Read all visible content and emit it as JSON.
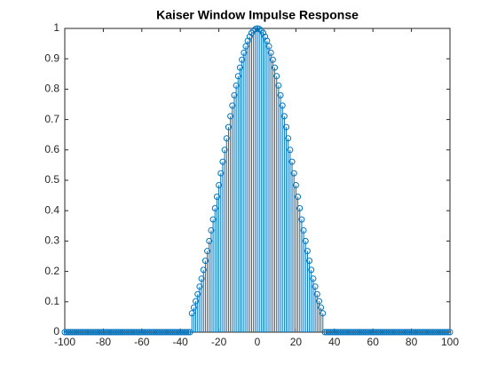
{
  "chart_data": {
    "type": "stem",
    "title": "Kaiser Window Impulse Response",
    "x": [
      -100,
      -99,
      -98,
      -97,
      -96,
      -95,
      -94,
      -93,
      -92,
      -91,
      -90,
      -89,
      -88,
      -87,
      -86,
      -85,
      -84,
      -83,
      -82,
      -81,
      -80,
      -79,
      -78,
      -77,
      -76,
      -75,
      -74,
      -73,
      -72,
      -71,
      -70,
      -69,
      -68,
      -67,
      -66,
      -65,
      -64,
      -63,
      -62,
      -61,
      -60,
      -59,
      -58,
      -57,
      -56,
      -55,
      -54,
      -53,
      -52,
      -51,
      -50,
      -49,
      -48,
      -47,
      -46,
      -45,
      -44,
      -43,
      -42,
      -41,
      -40,
      -39,
      -38,
      -37,
      -36,
      -35,
      -34,
      -33,
      -32,
      -31,
      -30,
      -29,
      -28,
      -27,
      -26,
      -25,
      -24,
      -23,
      -22,
      -21,
      -20,
      -19,
      -18,
      -17,
      -16,
      -15,
      -14,
      -13,
      -12,
      -11,
      -10,
      -9,
      -8,
      -7,
      -6,
      -5,
      -4,
      -3,
      -2,
      -1,
      0,
      1,
      2,
      3,
      4,
      5,
      6,
      7,
      8,
      9,
      10,
      11,
      12,
      13,
      14,
      15,
      16,
      17,
      18,
      19,
      20,
      21,
      22,
      23,
      24,
      25,
      26,
      27,
      28,
      29,
      30,
      31,
      32,
      33,
      34,
      35,
      36,
      37,
      38,
      39,
      40,
      41,
      42,
      43,
      44,
      45,
      46,
      47,
      48,
      49,
      50,
      51,
      52,
      53,
      54,
      55,
      56,
      57,
      58,
      59,
      60,
      61,
      62,
      63,
      64,
      65,
      66,
      67,
      68,
      69,
      70,
      71,
      72,
      73,
      74,
      75,
      76,
      77,
      78,
      79,
      80,
      81,
      82,
      83,
      84,
      85,
      86,
      87,
      88,
      89,
      90,
      91,
      92,
      93,
      94,
      95,
      96,
      97,
      98,
      99,
      100
    ],
    "values": [
      0,
      0,
      0,
      0,
      0,
      0,
      0,
      0,
      0,
      0,
      0,
      0,
      0,
      0,
      0,
      0,
      0,
      0,
      0,
      0,
      0,
      0,
      0,
      0,
      0,
      0,
      0,
      0,
      0,
      0,
      0,
      0,
      0,
      0,
      0,
      0,
      0,
      0,
      0,
      0,
      0,
      0,
      0,
      0,
      0,
      0,
      0,
      0,
      0,
      0,
      0,
      0,
      0,
      0,
      0,
      0,
      0,
      0,
      0,
      0,
      0,
      0,
      0,
      0,
      0,
      0,
      0.062,
      0.081,
      0.102,
      0.125,
      0.15,
      0.176,
      0.205,
      0.235,
      0.267,
      0.3,
      0.335,
      0.371,
      0.408,
      0.446,
      0.484,
      0.523,
      0.561,
      0.6,
      0.638,
      0.675,
      0.711,
      0.746,
      0.78,
      0.812,
      0.843,
      0.871,
      0.897,
      0.92,
      0.941,
      0.959,
      0.973,
      0.985,
      0.993,
      0.998,
      1,
      0.998,
      0.993,
      0.985,
      0.973,
      0.959,
      0.941,
      0.92,
      0.897,
      0.871,
      0.843,
      0.812,
      0.78,
      0.746,
      0.711,
      0.675,
      0.638,
      0.6,
      0.561,
      0.523,
      0.484,
      0.446,
      0.408,
      0.371,
      0.335,
      0.3,
      0.267,
      0.235,
      0.205,
      0.176,
      0.15,
      0.125,
      0.102,
      0.081,
      0.062,
      0,
      0,
      0,
      0,
      0,
      0,
      0,
      0,
      0,
      0,
      0,
      0,
      0,
      0,
      0,
      0,
      0,
      0,
      0,
      0,
      0,
      0,
      0,
      0,
      0,
      0,
      0,
      0,
      0,
      0,
      0,
      0,
      0,
      0,
      0,
      0,
      0,
      0,
      0,
      0,
      0,
      0,
      0,
      0,
      0,
      0,
      0,
      0,
      0,
      0,
      0,
      0,
      0,
      0,
      0,
      0,
      0,
      0,
      0,
      0,
      0,
      0,
      0,
      0,
      0,
      0
    ],
    "color": "#0072bd",
    "xlim": [
      -100,
      100
    ],
    "xticks": [
      -100,
      -80,
      -60,
      -40,
      -20,
      0,
      20,
      40,
      60,
      80,
      100
    ],
    "ylim": [
      0,
      1
    ],
    "yticks": [
      0,
      0.1,
      0.2,
      0.3,
      0.4,
      0.5,
      0.6,
      0.7,
      0.8,
      0.9,
      1
    ]
  }
}
